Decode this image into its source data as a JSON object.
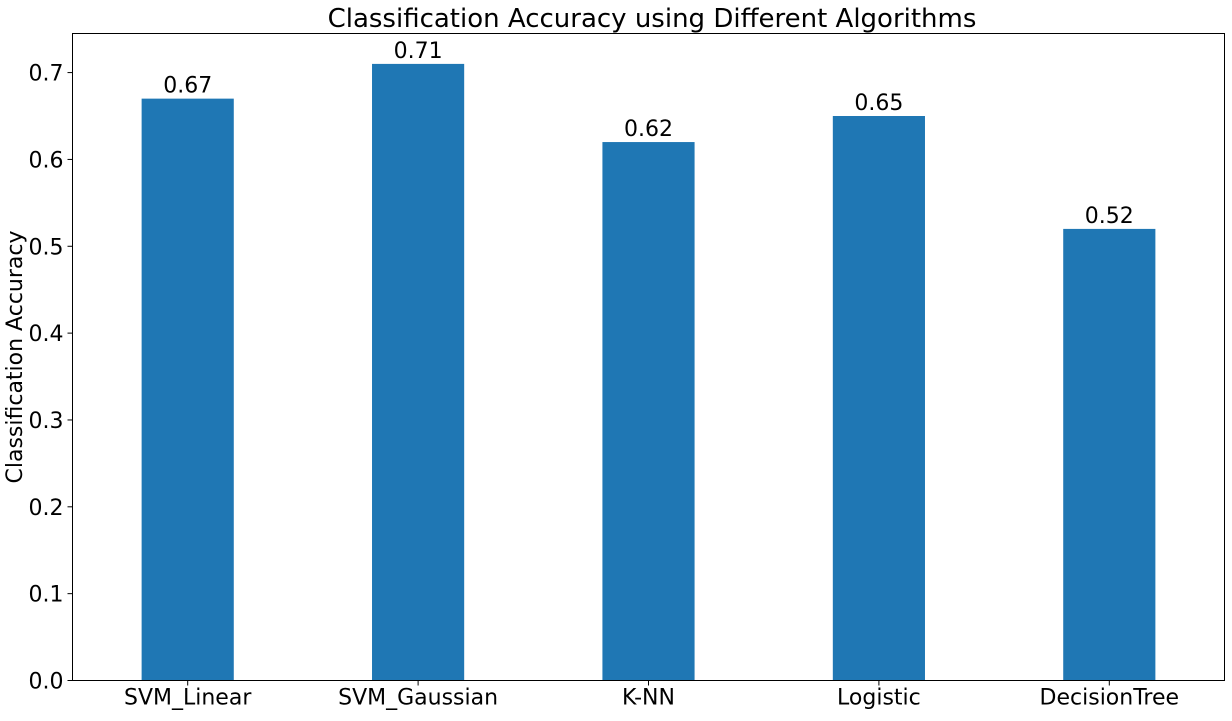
{
  "chart_data": {
    "type": "bar",
    "title": "Classification Accuracy using Different Algorithms",
    "xlabel": "",
    "ylabel": "Classification Accuracy",
    "categories": [
      "SVM_Linear",
      "SVM_Gaussian",
      "K-NN",
      "Logistic",
      "DecisionTree"
    ],
    "values": [
      0.67,
      0.71,
      0.62,
      0.65,
      0.52
    ],
    "data_labels": [
      "0.67",
      "0.71",
      "0.62",
      "0.65",
      "0.52"
    ],
    "ylim": [
      0,
      0.745
    ],
    "yticks": [
      0.0,
      0.1,
      0.2,
      0.3,
      0.4,
      0.5,
      0.6,
      0.7
    ],
    "ytick_labels": [
      "0.0",
      "0.1",
      "0.2",
      "0.3",
      "0.4",
      "0.5",
      "0.6",
      "0.7"
    ],
    "grid": false,
    "legend": "none",
    "bar_color": "#1f77b4"
  }
}
